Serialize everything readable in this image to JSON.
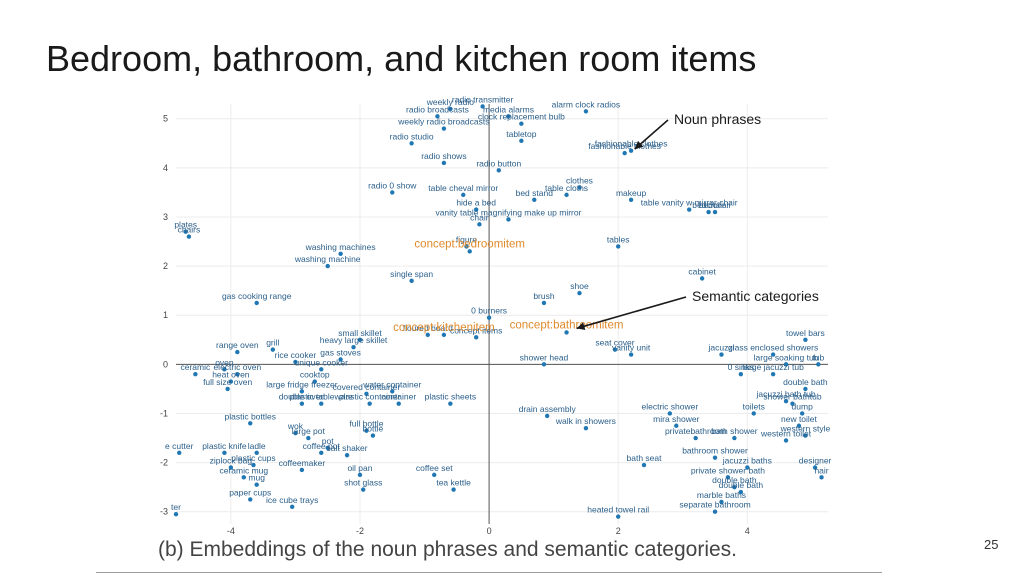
{
  "slide": {
    "title": "Bedroom, bathroom, and kitchen room items",
    "caption": "(b)  Embeddings of the noun phrases and semantic categories.",
    "page_number": "25"
  },
  "colors": {
    "point": "#1f77b4",
    "point_label": "#2b5f8a",
    "concept_label": "#e08a2c",
    "axis": "#555555",
    "grid": "#ececec",
    "annotation": "#1a1a1a"
  },
  "chart_data": {
    "type": "scatter",
    "title": "",
    "xlabel": "",
    "ylabel": "",
    "xlim": [
      -4.85,
      5.25
    ],
    "ylim": [
      -3.25,
      5.3
    ],
    "grid": true,
    "x_ticks": [
      -4,
      -2,
      0,
      2,
      4
    ],
    "y_ticks": [
      -3,
      -2,
      -1,
      0,
      1,
      2,
      3,
      4,
      5
    ],
    "annotations": [
      {
        "text": "Noun phrases",
        "target": "fashionable clothes"
      },
      {
        "text": "Semantic categories",
        "target": "concept:bathroomitem"
      }
    ],
    "series": [
      {
        "name": "Noun phrases",
        "points": [
          {
            "label": "alarm clock radios",
            "x": 1.5,
            "y": 5.15
          },
          {
            "label": "weekly radio",
            "x": -0.6,
            "y": 5.2
          },
          {
            "label": "radio transmitter",
            "x": -0.1,
            "y": 5.25
          },
          {
            "label": "radio broadcasts",
            "x": -0.8,
            "y": 5.05
          },
          {
            "label": "media alarms",
            "x": 0.3,
            "y": 5.05
          },
          {
            "label": "weekly radio broadcasts",
            "x": -0.7,
            "y": 4.8
          },
          {
            "label": "clock replacement bulb",
            "x": 0.5,
            "y": 4.9
          },
          {
            "label": "tabletop",
            "x": 0.5,
            "y": 4.55
          },
          {
            "label": "radio studio",
            "x": -1.2,
            "y": 4.5
          },
          {
            "label": "radio shows",
            "x": -0.7,
            "y": 4.1
          },
          {
            "label": "radio button",
            "x": 0.15,
            "y": 3.95
          },
          {
            "label": "fashionable clothes",
            "x": 2.1,
            "y": 4.3
          },
          {
            "label": "fashionable clothes",
            "x": 2.2,
            "y": 4.35
          },
          {
            "label": "radio 0 show",
            "x": -1.5,
            "y": 3.5
          },
          {
            "label": "table cheval mirror",
            "x": -0.4,
            "y": 3.45
          },
          {
            "label": "clothes",
            "x": 1.4,
            "y": 3.6
          },
          {
            "label": "table cloths",
            "x": 1.2,
            "y": 3.45
          },
          {
            "label": "bed stand",
            "x": 0.7,
            "y": 3.35
          },
          {
            "label": "makeup",
            "x": 2.2,
            "y": 3.35
          },
          {
            "label": "hide a bed",
            "x": -0.2,
            "y": 3.15
          },
          {
            "label": "table vanity w mirror chair",
            "x": 3.1,
            "y": 3.15
          },
          {
            "label": "bedchair",
            "x": 3.4,
            "y": 3.1
          },
          {
            "label": "bedchair",
            "x": 3.5,
            "y": 3.1
          },
          {
            "label": "vanity table magnifying make up mirror",
            "x": 0.3,
            "y": 2.95
          },
          {
            "label": "chair",
            "x": -0.15,
            "y": 2.85
          },
          {
            "label": "plates",
            "x": -4.7,
            "y": 2.7
          },
          {
            "label": "chairs",
            "x": -4.65,
            "y": 2.6
          },
          {
            "label": "tables",
            "x": 2.0,
            "y": 2.4
          },
          {
            "label": "figure",
            "x": -0.35,
            "y": 2.4
          },
          {
            "label": "washing machines",
            "x": -2.3,
            "y": 2.25
          },
          {
            "label": "washing machine",
            "x": -2.5,
            "y": 2.0
          },
          {
            "label": "single span",
            "x": -1.2,
            "y": 1.7
          },
          {
            "label": "cabinet",
            "x": 3.3,
            "y": 1.75
          },
          {
            "label": "gas cooking range",
            "x": -3.6,
            "y": 1.25
          },
          {
            "label": "shoe",
            "x": 1.4,
            "y": 1.45
          },
          {
            "label": "brush",
            "x": 0.85,
            "y": 1.25
          },
          {
            "label": "0 burners",
            "x": 0.0,
            "y": 0.95
          },
          {
            "label": "floured board",
            "x": -0.95,
            "y": 0.6
          },
          {
            "label": "concept items",
            "x": -0.2,
            "y": 0.55
          },
          {
            "label": "small skillet",
            "x": -2.0,
            "y": 0.5
          },
          {
            "label": "heavy large skillet",
            "x": -2.1,
            "y": 0.35
          },
          {
            "label": "towel bars",
            "x": 4.9,
            "y": 0.5
          },
          {
            "label": "range oven",
            "x": -3.9,
            "y": 0.25
          },
          {
            "label": "grill",
            "x": -3.35,
            "y": 0.3
          },
          {
            "label": "seat cover",
            "x": 1.95,
            "y": 0.3
          },
          {
            "label": "vanity unit",
            "x": 2.2,
            "y": 0.2
          },
          {
            "label": "jacuzzi",
            "x": 3.6,
            "y": 0.2
          },
          {
            "label": "glass enclosed showers",
            "x": 4.4,
            "y": 0.2
          },
          {
            "label": "rice cooker",
            "x": -3.0,
            "y": 0.05
          },
          {
            "label": "gas stoves",
            "x": -2.3,
            "y": 0.1
          },
          {
            "label": "unique cooker",
            "x": -2.6,
            "y": -0.1
          },
          {
            "label": "shower head",
            "x": 0.85,
            "y": 0.0
          },
          {
            "label": "oven",
            "x": -4.1,
            "y": -0.1
          },
          {
            "label": "ceramic",
            "x": -4.55,
            "y": -0.2
          },
          {
            "label": "electric oven",
            "x": -3.9,
            "y": -0.2
          },
          {
            "label": "large soaking tub",
            "x": 4.6,
            "y": 0.0
          },
          {
            "label": "0 sinks",
            "x": 3.9,
            "y": -0.2
          },
          {
            "label": "large jacuzzi tub",
            "x": 4.4,
            "y": -0.2
          },
          {
            "label": "tub",
            "x": 5.1,
            "y": 0.0
          },
          {
            "label": "heat oven",
            "x": -4.0,
            "y": -0.35
          },
          {
            "label": "cooktop",
            "x": -2.7,
            "y": -0.35
          },
          {
            "label": "full size oven",
            "x": -4.05,
            "y": -0.5
          },
          {
            "label": "large fridge freezer",
            "x": -2.9,
            "y": -0.55
          },
          {
            "label": "water container",
            "x": -1.5,
            "y": -0.55
          },
          {
            "label": "covered container",
            "x": -1.9,
            "y": -0.6
          },
          {
            "label": "double oven",
            "x": -2.9,
            "y": -0.8
          },
          {
            "label": "plastic tableware",
            "x": -2.6,
            "y": -0.8
          },
          {
            "label": "plastic container",
            "x": -1.85,
            "y": -0.8
          },
          {
            "label": "container",
            "x": -1.4,
            "y": -0.8
          },
          {
            "label": "plastic sheets",
            "x": -0.6,
            "y": -0.8
          },
          {
            "label": "double bath",
            "x": 4.9,
            "y": -0.5
          },
          {
            "label": "jacuzzi bath tub",
            "x": 4.6,
            "y": -0.75
          },
          {
            "label": "shower bathtub",
            "x": 4.7,
            "y": -0.8
          },
          {
            "label": "drain assembly",
            "x": 0.9,
            "y": -1.05
          },
          {
            "label": "electric shower",
            "x": 2.8,
            "y": -1.0
          },
          {
            "label": "toilets",
            "x": 4.1,
            "y": -1.0
          },
          {
            "label": "dump",
            "x": 4.85,
            "y": -1.0
          },
          {
            "label": "plastic bottles",
            "x": -3.7,
            "y": -1.2
          },
          {
            "label": "walk in showers",
            "x": 1.5,
            "y": -1.3
          },
          {
            "label": "mira shower",
            "x": 2.9,
            "y": -1.25
          },
          {
            "label": "new toilet",
            "x": 4.8,
            "y": -1.25
          },
          {
            "label": "wok",
            "x": -3.0,
            "y": -1.4
          },
          {
            "label": "full bottle",
            "x": -1.9,
            "y": -1.35
          },
          {
            "label": "bottle",
            "x": -1.8,
            "y": -1.45
          },
          {
            "label": "large pot",
            "x": -2.8,
            "y": -1.5
          },
          {
            "label": "privatebathroom",
            "x": 3.2,
            "y": -1.5
          },
          {
            "label": "bath shower",
            "x": 3.8,
            "y": -1.5
          },
          {
            "label": "western style",
            "x": 4.9,
            "y": -1.45
          },
          {
            "label": "western toilet",
            "x": 4.6,
            "y": -1.55
          },
          {
            "label": "e cutter",
            "x": -4.8,
            "y": -1.8
          },
          {
            "label": "plastic knife",
            "x": -4.1,
            "y": -1.8
          },
          {
            "label": "ladle",
            "x": -3.6,
            "y": -1.8
          },
          {
            "label": "pot",
            "x": -2.5,
            "y": -1.7
          },
          {
            "label": "coffee pot",
            "x": -2.6,
            "y": -1.8
          },
          {
            "label": "salt shaker",
            "x": -2.2,
            "y": -1.85
          },
          {
            "label": "bathroom shower",
            "x": 3.5,
            "y": -1.9
          },
          {
            "label": "ziplock bag",
            "x": -4.0,
            "y": -2.1
          },
          {
            "label": "plastic cups",
            "x": -3.65,
            "y": -2.05
          },
          {
            "label": "coffeemaker",
            "x": -2.9,
            "y": -2.15
          },
          {
            "label": "bath seat",
            "x": 2.4,
            "y": -2.05
          },
          {
            "label": "jacuzzi baths",
            "x": 4.0,
            "y": -2.1
          },
          {
            "label": "designer",
            "x": 5.05,
            "y": -2.1
          },
          {
            "label": "hair",
            "x": 5.15,
            "y": -2.3
          },
          {
            "label": "ceramic mug",
            "x": -3.8,
            "y": -2.3
          },
          {
            "label": "oil pan",
            "x": -2.0,
            "y": -2.25
          },
          {
            "label": "coffee set",
            "x": -0.85,
            "y": -2.25
          },
          {
            "label": "private shower bath",
            "x": 3.7,
            "y": -2.3
          },
          {
            "label": "mug",
            "x": -3.6,
            "y": -2.45
          },
          {
            "label": "shot glass",
            "x": -1.95,
            "y": -2.55
          },
          {
            "label": "tea kettle",
            "x": -0.55,
            "y": -2.55
          },
          {
            "label": "double bath",
            "x": 3.8,
            "y": -2.5
          },
          {
            "label": "double bath",
            "x": 3.9,
            "y": -2.6
          },
          {
            "label": "paper cups",
            "x": -3.7,
            "y": -2.75
          },
          {
            "label": "ice cube trays",
            "x": -3.05,
            "y": -2.9
          },
          {
            "label": "marble baths",
            "x": 3.6,
            "y": -2.8
          },
          {
            "label": "heated towel rail",
            "x": 2.0,
            "y": -3.1
          },
          {
            "label": "separate bathroom",
            "x": 3.5,
            "y": -3.0
          },
          {
            "label": "ter",
            "x": -4.85,
            "y": -3.05
          }
        ]
      },
      {
        "name": "Semantic categories",
        "points": [
          {
            "label": "concept:bedroomitem",
            "x": -0.3,
            "y": 2.3
          },
          {
            "label": "concept:bathroomitem",
            "x": 1.2,
            "y": 0.65
          },
          {
            "label": "concept:kitchenitem",
            "x": -0.7,
            "y": 0.6
          }
        ]
      }
    ]
  }
}
